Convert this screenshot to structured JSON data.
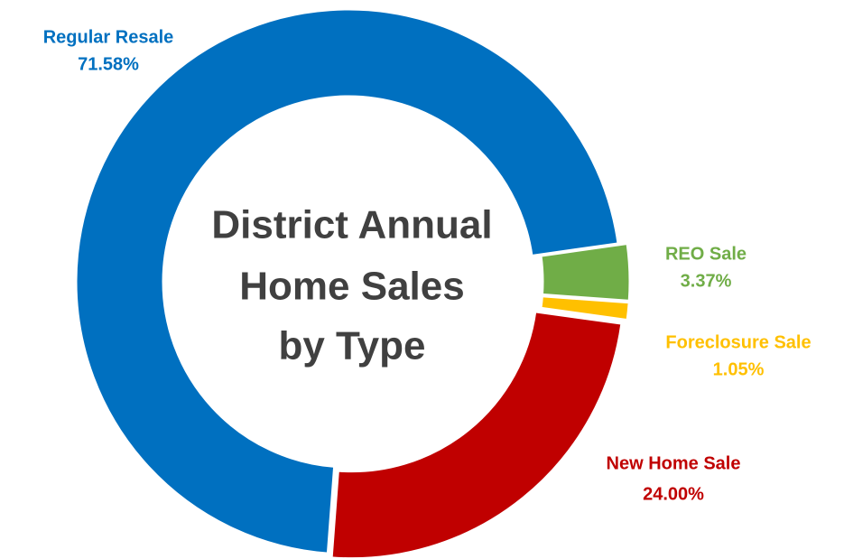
{
  "chart_data": {
    "type": "donut",
    "title": [
      "District Annual",
      "Home Sales",
      "by Type"
    ],
    "categories": [
      "Regular Resale",
      "REO Sale",
      "Foreclosure Sale",
      "New Home Sale"
    ],
    "values": [
      71.58,
      3.37,
      1.05,
      24.0
    ],
    "value_labels": [
      "71.58%",
      "3.37%",
      "1.05%",
      "24.00%"
    ],
    "colors": [
      "#0070c0",
      "#70ad47",
      "#ffc000",
      "#c00000"
    ]
  }
}
